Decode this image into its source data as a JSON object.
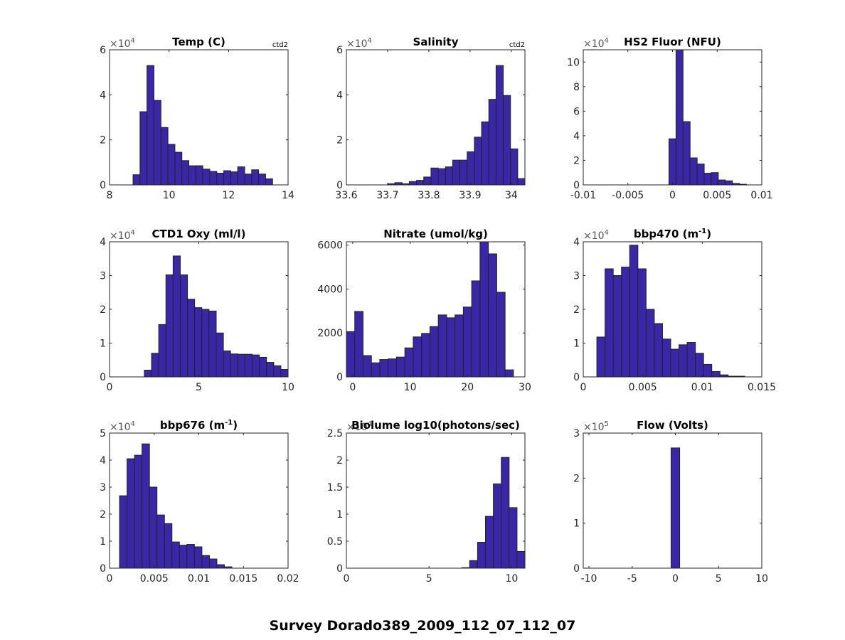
{
  "figure": {
    "suptitle": "Survey Dorado389_2009_112_07_112_07",
    "bar_color": "#3a27a8",
    "edge_color": "#222222"
  },
  "chart_data": [
    {
      "type": "bar",
      "title": "Temp (C)",
      "corner_label": "ctd2",
      "multiplier": "×10",
      "exponent": "4",
      "xlim": [
        8,
        14
      ],
      "ylim": [
        0,
        6
      ],
      "xticks": [
        8,
        10,
        12,
        14
      ],
      "xticklabels": [
        "8",
        "10",
        "12",
        "14"
      ],
      "yticks": [
        0,
        2,
        4,
        6
      ],
      "yticklabels": [
        "0",
        "2",
        "4",
        "6"
      ],
      "bin_start": 8.79,
      "bin_width": 0.2345,
      "values": [
        0.45,
        3.25,
        5.3,
        3.75,
        2.55,
        1.8,
        1.45,
        1.08,
        0.85,
        0.85,
        0.7,
        0.6,
        0.52,
        0.63,
        0.58,
        0.8,
        0.48,
        0.67,
        0.48,
        0.27
      ]
    },
    {
      "type": "bar",
      "title": "Salinity",
      "corner_label": "ctd2",
      "multiplier": "×10",
      "exponent": "4",
      "xlim": [
        33.6,
        34.033
      ],
      "ylim": [
        0,
        6
      ],
      "xticks": [
        33.6,
        33.7,
        33.8,
        33.9,
        34
      ],
      "xticklabels": [
        "33.6",
        "33.7",
        "33.8",
        "33.9",
        "34"
      ],
      "yticks": [
        0,
        2,
        4,
        6
      ],
      "yticklabels": [
        "0",
        "2",
        "4",
        "6"
      ],
      "bin_start": 33.7,
      "bin_width": 0.01753,
      "values": [
        0.05,
        0.1,
        0.05,
        0.15,
        0.2,
        0.35,
        0.75,
        0.72,
        0.8,
        1.1,
        1.1,
        1.47,
        2.12,
        2.8,
        3.8,
        5.3,
        3.97,
        1.6,
        0.28
      ]
    },
    {
      "type": "bar",
      "title": "HS2 Fluor (NFU)",
      "corner_label": "",
      "multiplier": "×10",
      "exponent": "4",
      "xlim": [
        -0.01,
        0.01
      ],
      "ylim": [
        0,
        11
      ],
      "xticks": [
        -0.01,
        -0.005,
        0,
        0.005,
        0.01
      ],
      "xticklabels": [
        "-0.01",
        "-0.005",
        "0",
        "0.005",
        "0.01"
      ],
      "yticks": [
        0,
        2,
        4,
        6,
        8,
        10
      ],
      "yticklabels": [
        "0",
        "2",
        "4",
        "6",
        "8",
        "10"
      ],
      "bin_start": -0.0004,
      "bin_width": 0.00079,
      "values": [
        3.75,
        11.5,
        5.15,
        2.2,
        1.7,
        0.95,
        1.0,
        0.4,
        0.33,
        0.12,
        0.05
      ]
    },
    {
      "type": "bar",
      "title": "CTD1 Oxy (ml/l)",
      "corner_label": "",
      "multiplier": "×10",
      "exponent": "4",
      "xlim": [
        0,
        10
      ],
      "ylim": [
        0,
        4
      ],
      "xticks": [
        0,
        5,
        10
      ],
      "xticklabels": [
        "0",
        "5",
        "10"
      ],
      "yticks": [
        0,
        1,
        2,
        3,
        4
      ],
      "yticklabels": [
        "0",
        "1",
        "2",
        "3",
        "4"
      ],
      "bin_start": 1.95,
      "bin_width": 0.4025,
      "values": [
        0.2,
        0.7,
        1.55,
        3.02,
        3.58,
        3.02,
        2.3,
        2.05,
        2.0,
        1.95,
        1.3,
        0.77,
        0.68,
        0.67,
        0.67,
        0.65,
        0.58,
        0.43,
        0.33,
        0.22
      ]
    },
    {
      "type": "bar",
      "title": "Nitrate (umol/kg)",
      "corner_label": "",
      "multiplier": "",
      "exponent": "",
      "xlim": [
        -1.1,
        30
      ],
      "ylim": [
        0,
        6150
      ],
      "xticks": [
        0,
        10,
        20,
        30
      ],
      "xticklabels": [
        "0",
        "10",
        "20",
        "30"
      ],
      "yticks": [
        0,
        2000,
        4000,
        6000
      ],
      "yticklabels": [
        "0",
        "2000",
        "4000",
        "6000"
      ],
      "bin_start": -1.1,
      "bin_width": 1.455,
      "values": [
        2060,
        2980,
        970,
        640,
        790,
        820,
        900,
        1320,
        1820,
        1980,
        2290,
        2820,
        2690,
        2820,
        3180,
        4370,
        6300,
        5600,
        3850,
        320
      ]
    },
    {
      "type": "bar",
      "title": "bbp470 (m",
      "title_sup": "-1",
      "title_end": ")",
      "corner_label": "",
      "multiplier": "×10",
      "exponent": "4",
      "xlim": [
        0,
        0.015
      ],
      "ylim": [
        0,
        4
      ],
      "xticks": [
        0,
        0.005,
        0.01,
        0.015
      ],
      "xticklabels": [
        "0",
        "0.005",
        "0.01",
        "0.015"
      ],
      "yticks": [
        0,
        1,
        2,
        3,
        4
      ],
      "yticklabels": [
        "0",
        "1",
        "2",
        "3",
        "4"
      ],
      "bin_start": 0.00114,
      "bin_width": 0.00069,
      "values": [
        1.18,
        3.2,
        3.0,
        3.25,
        3.9,
        3.2,
        2.0,
        1.58,
        1.12,
        0.82,
        0.95,
        1.02,
        0.7,
        0.37,
        0.16,
        0.06,
        0.02,
        0.02
      ]
    },
    {
      "type": "bar",
      "title": "bbp676 (m",
      "title_sup": "-1",
      "title_end": ")",
      "corner_label": "",
      "multiplier": "×10",
      "exponent": "4",
      "xlim": [
        0,
        0.02
      ],
      "ylim": [
        0,
        5
      ],
      "xticks": [
        0,
        0.005,
        0.01,
        0.015,
        0.02
      ],
      "xticklabels": [
        "0",
        "0.005",
        "0.01",
        "0.015",
        "0.02"
      ],
      "yticks": [
        0,
        1,
        2,
        3,
        4,
        5
      ],
      "yticklabels": [
        "0",
        "1",
        "2",
        "3",
        "4",
        "5"
      ],
      "bin_start": 0.00112,
      "bin_width": 0.000839,
      "values": [
        2.68,
        4.05,
        4.18,
        4.6,
        3.0,
        1.97,
        1.65,
        0.97,
        0.85,
        0.88,
        0.79,
        0.47,
        0.34,
        0.13,
        0.05
      ]
    },
    {
      "type": "bar",
      "title": "Biolume log10(photons/sec)",
      "corner_label": "",
      "multiplier": "×10",
      "exponent": "4",
      "xlim": [
        0,
        10.8
      ],
      "ylim": [
        0,
        2.5
      ],
      "xticks": [
        0,
        5,
        10
      ],
      "xticklabels": [
        "0",
        "5",
        "10"
      ],
      "yticks": [
        0,
        0.5,
        1,
        1.5,
        2,
        2.5
      ],
      "yticklabels": [
        "0",
        "0.5",
        "1",
        "1.5",
        "2",
        "2.5"
      ],
      "bin_start": 6.98,
      "bin_width": 0.4775,
      "values": [
        0.01,
        0.14,
        0.48,
        0.96,
        1.56,
        2.05,
        1.12,
        0.31
      ]
    },
    {
      "type": "bar",
      "title": "Flow (Volts)",
      "corner_label": "",
      "multiplier": "×10",
      "exponent": "5",
      "xlim": [
        -10.66,
        10
      ],
      "ylim": [
        0,
        3
      ],
      "xticks": [
        -10,
        -5,
        0,
        5,
        10
      ],
      "xticklabels": [
        "-10",
        "-5",
        "0",
        "5",
        "10"
      ],
      "yticks": [
        0,
        1,
        2,
        3
      ],
      "yticklabels": [
        "0",
        "1",
        "2",
        "3"
      ],
      "bin_start": -0.5,
      "bin_width": 1.0,
      "values": [
        2.67
      ]
    }
  ]
}
